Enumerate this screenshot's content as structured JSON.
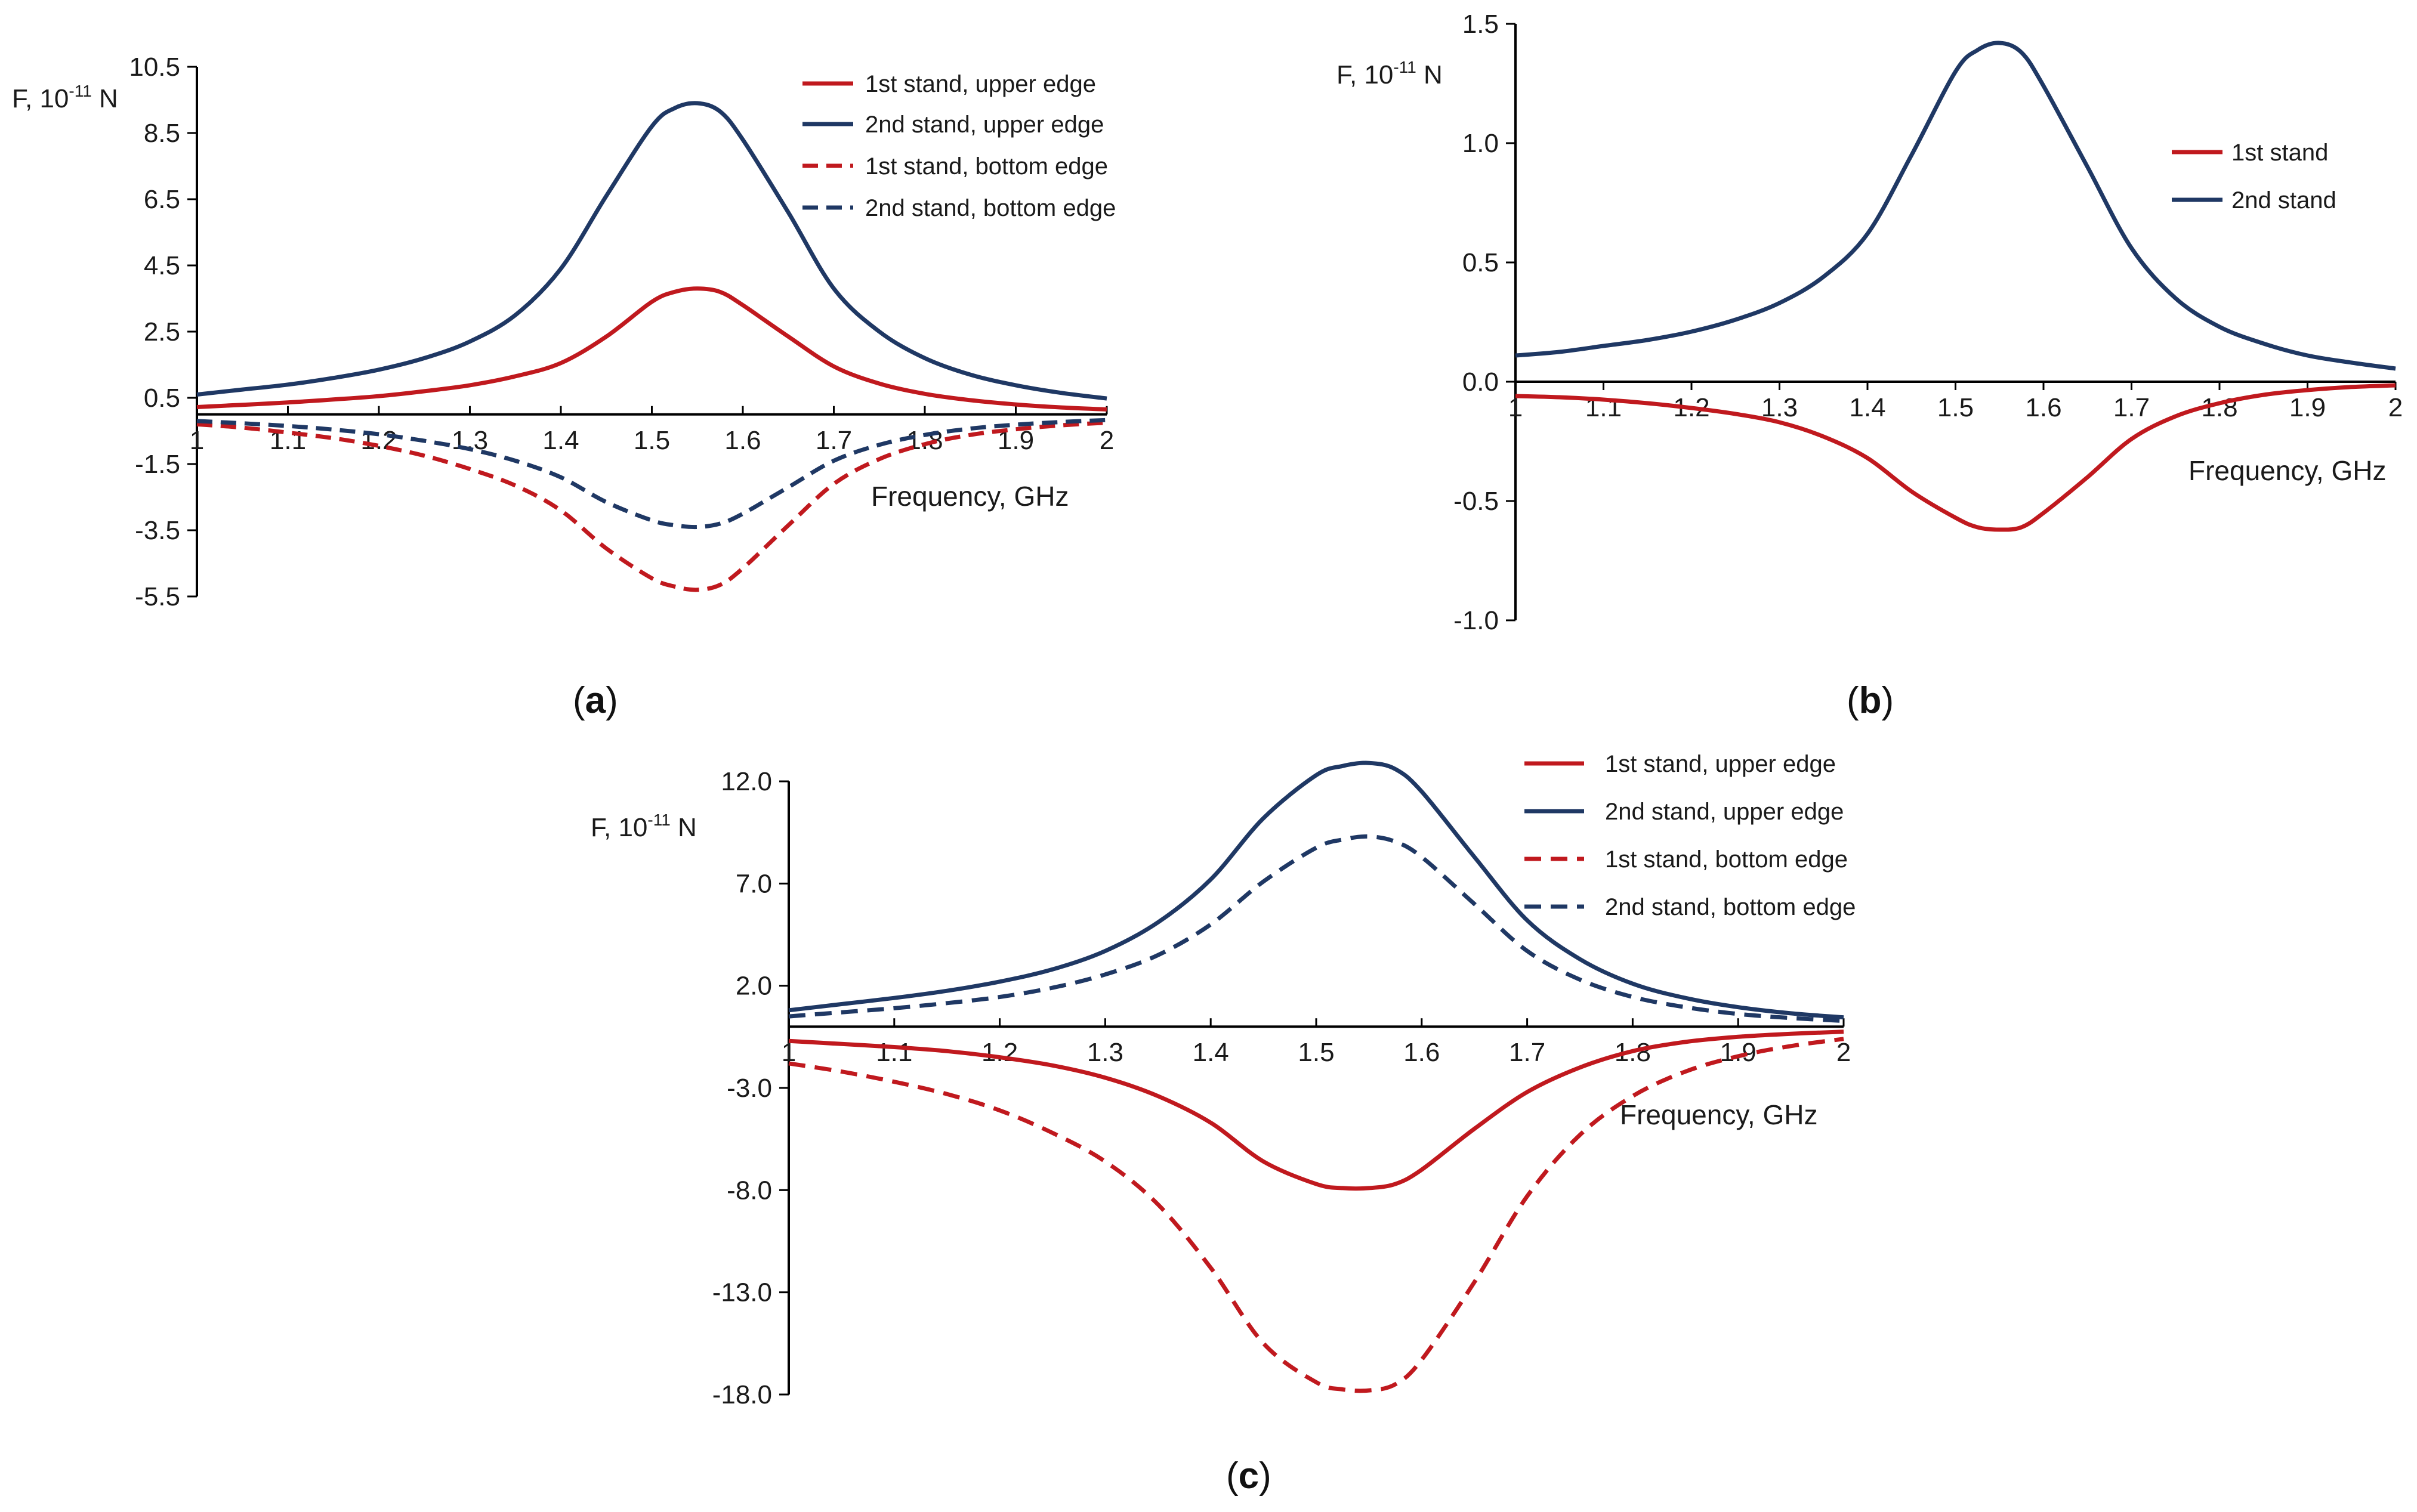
{
  "colors": {
    "red": "#c0191e",
    "blue": "#1f3864",
    "axis": "#000000"
  },
  "chart_data": [
    {
      "type": "line",
      "panel_label": "a",
      "ylabel": {
        "main": "F, 10",
        "exp": "-11",
        "unit": " N"
      },
      "xlabel": "Frequency, GHz",
      "xlim": [
        1,
        2
      ],
      "ylim": [
        -5.5,
        10.5
      ],
      "xticks": [
        "1",
        "1.1",
        "1.2",
        "1.3",
        "1.4",
        "1.5",
        "1.6",
        "1.7",
        "1.8",
        "1.9",
        "2"
      ],
      "yticks": [
        "10.5",
        "8.5",
        "6.5",
        "4.5",
        "2.5",
        "0.5",
        "-1.5",
        "-3.5",
        "-5.5"
      ],
      "x": [
        1.0,
        1.05,
        1.1,
        1.15,
        1.2,
        1.25,
        1.3,
        1.35,
        1.4,
        1.45,
        1.5,
        1.525,
        1.55,
        1.575,
        1.6,
        1.65,
        1.7,
        1.75,
        1.8,
        1.85,
        1.9,
        1.95,
        2.0
      ],
      "series": [
        {
          "name": "1st stand, upper edge",
          "color": "red",
          "dash": false,
          "values": [
            0.22,
            0.29,
            0.36,
            0.45,
            0.55,
            0.7,
            0.88,
            1.15,
            1.55,
            2.35,
            3.4,
            3.7,
            3.8,
            3.7,
            3.3,
            2.35,
            1.45,
            0.93,
            0.62,
            0.43,
            0.3,
            0.21,
            0.15
          ]
        },
        {
          "name": "2nd stand, upper edge",
          "color": "blue",
          "dash": false,
          "values": [
            0.6,
            0.75,
            0.9,
            1.1,
            1.35,
            1.7,
            2.2,
            3.0,
            4.4,
            6.6,
            8.7,
            9.25,
            9.4,
            9.15,
            8.3,
            6.1,
            3.8,
            2.5,
            1.7,
            1.2,
            0.88,
            0.65,
            0.48
          ]
        },
        {
          "name": "1st stand, bottom edge",
          "color": "red",
          "dash": true,
          "values": [
            -0.3,
            -0.4,
            -0.55,
            -0.72,
            -0.95,
            -1.25,
            -1.65,
            -2.15,
            -2.9,
            -4.05,
            -4.95,
            -5.2,
            -5.3,
            -5.15,
            -4.65,
            -3.35,
            -2.1,
            -1.35,
            -0.9,
            -0.62,
            -0.45,
            -0.33,
            -0.25
          ]
        },
        {
          "name": "2nd stand, bottom edge",
          "color": "blue",
          "dash": true,
          "values": [
            -0.2,
            -0.27,
            -0.35,
            -0.46,
            -0.6,
            -0.8,
            -1.05,
            -1.4,
            -1.9,
            -2.65,
            -3.2,
            -3.35,
            -3.4,
            -3.3,
            -3.0,
            -2.2,
            -1.4,
            -0.92,
            -0.62,
            -0.43,
            -0.31,
            -0.23,
            -0.17
          ]
        }
      ]
    },
    {
      "type": "line",
      "panel_label": "b",
      "ylabel": {
        "main": "F, 10",
        "exp": "-11",
        "unit": " N"
      },
      "xlabel": "Frequency, GHz",
      "xlim": [
        1,
        2
      ],
      "ylim": [
        -1.0,
        1.5
      ],
      "xticks": [
        "1",
        "1.1",
        "1.2",
        "1.3",
        "1.4",
        "1.5",
        "1.6",
        "1.7",
        "1.8",
        "1.9",
        "2"
      ],
      "yticks": [
        "1.5",
        "1.0",
        "0.5",
        "0.0",
        "-0.5",
        "-1.0"
      ],
      "x": [
        1.0,
        1.05,
        1.1,
        1.15,
        1.2,
        1.25,
        1.3,
        1.35,
        1.4,
        1.45,
        1.5,
        1.525,
        1.55,
        1.575,
        1.6,
        1.65,
        1.7,
        1.75,
        1.8,
        1.85,
        1.9,
        1.95,
        2.0
      ],
      "series": [
        {
          "name": "1st stand",
          "color": "red",
          "dash": false,
          "values": [
            -0.06,
            -0.065,
            -0.075,
            -0.09,
            -0.11,
            -0.135,
            -0.17,
            -0.23,
            -0.32,
            -0.46,
            -0.57,
            -0.61,
            -0.62,
            -0.61,
            -0.55,
            -0.4,
            -0.24,
            -0.145,
            -0.09,
            -0.055,
            -0.035,
            -0.022,
            -0.015
          ]
        },
        {
          "name": "2nd stand",
          "color": "blue",
          "dash": false,
          "values": [
            0.11,
            0.125,
            0.15,
            0.175,
            0.21,
            0.26,
            0.33,
            0.44,
            0.62,
            0.95,
            1.3,
            1.39,
            1.42,
            1.38,
            1.24,
            0.9,
            0.56,
            0.35,
            0.23,
            0.16,
            0.11,
            0.08,
            0.055
          ]
        }
      ]
    },
    {
      "type": "line",
      "panel_label": "c",
      "ylabel": {
        "main": "F, 10",
        "exp": "-11",
        "unit": " N"
      },
      "xlabel": "Frequency, GHz",
      "xlim": [
        1,
        2
      ],
      "ylim": [
        -18.0,
        12.0
      ],
      "xticks": [
        "1",
        "1.1",
        "1.2",
        "1.3",
        "1.4",
        "1.5",
        "1.6",
        "1.7",
        "1.8",
        "1.9",
        "2"
      ],
      "yticks": [
        "12.0",
        "7.0",
        "2.0",
        "-3.0",
        "-8.0",
        "-13.0",
        "-18.0"
      ],
      "x": [
        1.0,
        1.05,
        1.1,
        1.15,
        1.2,
        1.25,
        1.3,
        1.35,
        1.4,
        1.45,
        1.5,
        1.525,
        1.55,
        1.575,
        1.6,
        1.65,
        1.7,
        1.75,
        1.8,
        1.85,
        1.9,
        1.95,
        2.0
      ],
      "series": [
        {
          "name": "1st stand, upper edge",
          "color": "red",
          "dash": false,
          "values": [
            -0.7,
            -0.85,
            -1.0,
            -1.2,
            -1.5,
            -1.9,
            -2.5,
            -3.4,
            -4.7,
            -6.6,
            -7.7,
            -7.9,
            -7.9,
            -7.7,
            -7.0,
            -5.0,
            -3.2,
            -2.0,
            -1.2,
            -0.75,
            -0.5,
            -0.35,
            -0.25
          ]
        },
        {
          "name": "2nd stand, upper edge",
          "color": "blue",
          "dash": false,
          "values": [
            0.8,
            1.1,
            1.4,
            1.75,
            2.2,
            2.8,
            3.7,
            5.1,
            7.2,
            10.2,
            12.3,
            12.75,
            12.9,
            12.6,
            11.5,
            8.3,
            5.2,
            3.3,
            2.1,
            1.4,
            0.95,
            0.65,
            0.45
          ]
        },
        {
          "name": "1st stand, bottom edge",
          "color": "red",
          "dash": true,
          "values": [
            -1.8,
            -2.2,
            -2.7,
            -3.3,
            -4.1,
            -5.2,
            -6.6,
            -8.7,
            -11.8,
            -15.5,
            -17.4,
            -17.75,
            -17.8,
            -17.5,
            -16.3,
            -12.5,
            -8.3,
            -5.3,
            -3.4,
            -2.2,
            -1.45,
            -0.95,
            -0.6
          ]
        },
        {
          "name": "2nd stand, bottom edge",
          "color": "blue",
          "dash": true,
          "values": [
            0.5,
            0.7,
            0.9,
            1.15,
            1.45,
            1.9,
            2.55,
            3.5,
            5.0,
            7.1,
            8.75,
            9.15,
            9.3,
            9.05,
            8.3,
            6.0,
            3.7,
            2.3,
            1.45,
            0.95,
            0.62,
            0.42,
            0.28
          ]
        }
      ]
    }
  ]
}
